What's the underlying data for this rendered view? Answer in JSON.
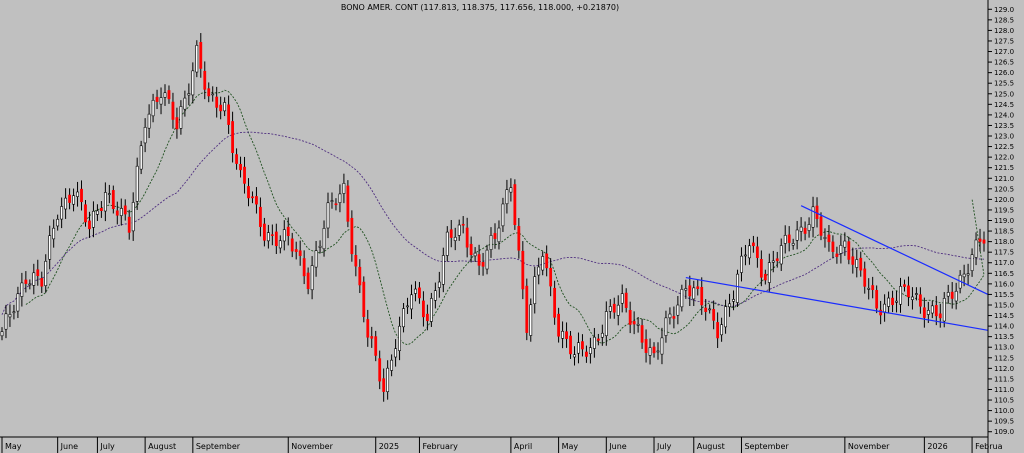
{
  "chart_title": "BONO AMER. CONT (117.813, 118.375, 117.656, 118.000, +0.21870)",
  "colors": {
    "background": "#c0c0c0",
    "up_candle": "#ffffff",
    "down_candle": "#ff0000",
    "wick": "#000000",
    "ma_short": "#205020",
    "ma_long": "#503080",
    "trendline": "#1a2cff"
  },
  "chart_data": {
    "type": "candlestick",
    "title": "BONO AMER. CONT (117.813, 118.375, 117.656, 118.000, +0.21870)",
    "ylim": [
      108.75,
      129.25
    ],
    "y_ticks": [
      "109.0",
      "109.5",
      "110.0",
      "110.5",
      "111.0",
      "111.5",
      "112.0",
      "112.5",
      "113.0",
      "113.5",
      "114.0",
      "114.5",
      "115.0",
      "115.5",
      "116.0",
      "116.5",
      "117.0",
      "117.5",
      "118.0",
      "118.5",
      "119.0",
      "119.5",
      "120.0",
      "120.5",
      "121.0",
      "121.5",
      "122.0",
      "122.5",
      "123.0",
      "123.5",
      "124.0",
      "124.5",
      "125.0",
      "125.5",
      "126.0",
      "126.5",
      "127.0",
      "127.5",
      "128.0",
      "128.5",
      "129.0"
    ],
    "x_ticks": [
      "May",
      "June",
      "July",
      "August",
      "September",
      "November",
      "2025",
      "February",
      "April",
      "May",
      "June",
      "July",
      "August",
      "September",
      "November",
      "2026",
      "Februa"
    ],
    "x_tick_index": [
      0,
      14,
      24,
      36,
      48,
      72,
      94,
      105,
      128,
      140,
      152,
      164,
      174,
      186,
      212,
      232,
      244
    ],
    "close_keypoints": [
      [
        0,
        113.5
      ],
      [
        6,
        116.5
      ],
      [
        10,
        116.0
      ],
      [
        14,
        119.5
      ],
      [
        18,
        120.5
      ],
      [
        22,
        118.5
      ],
      [
        26,
        120.5
      ],
      [
        32,
        118.5
      ],
      [
        36,
        124.0
      ],
      [
        40,
        125.0
      ],
      [
        44,
        123.5
      ],
      [
        49,
        127.0
      ],
      [
        52,
        124.5
      ],
      [
        56,
        124.5
      ],
      [
        60,
        121.0
      ],
      [
        66,
        118.5
      ],
      [
        72,
        118.0
      ],
      [
        77,
        116.3
      ],
      [
        82,
        119.3
      ],
      [
        86,
        120.5
      ],
      [
        88,
        118.0
      ],
      [
        92,
        113.5
      ],
      [
        96,
        111.0
      ],
      [
        99,
        113.5
      ],
      [
        103,
        115.5
      ],
      [
        107,
        114.5
      ],
      [
        112,
        118.0
      ],
      [
        116,
        118.5
      ],
      [
        120,
        117.0
      ],
      [
        124,
        118.0
      ],
      [
        128,
        121.0
      ],
      [
        132,
        114.0
      ],
      [
        136,
        117.5
      ],
      [
        140,
        114.0
      ],
      [
        144,
        112.5
      ],
      [
        148,
        113.0
      ],
      [
        152,
        114.5
      ],
      [
        156,
        115.0
      ],
      [
        160,
        114.0
      ],
      [
        164,
        112.3
      ],
      [
        168,
        114.5
      ],
      [
        172,
        116.0
      ],
      [
        176,
        115.0
      ],
      [
        180,
        114.0
      ],
      [
        184,
        115.5
      ],
      [
        188,
        118.0
      ],
      [
        192,
        116.5
      ],
      [
        196,
        117.5
      ],
      [
        200,
        118.5
      ],
      [
        204,
        119.3
      ],
      [
        208,
        117.5
      ],
      [
        212,
        118.0
      ],
      [
        216,
        116.3
      ],
      [
        220,
        115.0
      ],
      [
        224,
        115.3
      ],
      [
        228,
        115.5
      ],
      [
        232,
        115.0
      ],
      [
        236,
        114.5
      ],
      [
        240,
        115.8
      ],
      [
        244,
        117.5
      ],
      [
        246,
        118.0
      ]
    ],
    "ma_short_last_point": [
      244,
      120.0
    ],
    "trendlines": [
      {
        "from": [
          201,
          119.7
        ],
        "to": [
          248,
          115.5
        ]
      },
      {
        "from": [
          172,
          116.3
        ],
        "to": [
          248,
          113.8
        ]
      }
    ]
  }
}
